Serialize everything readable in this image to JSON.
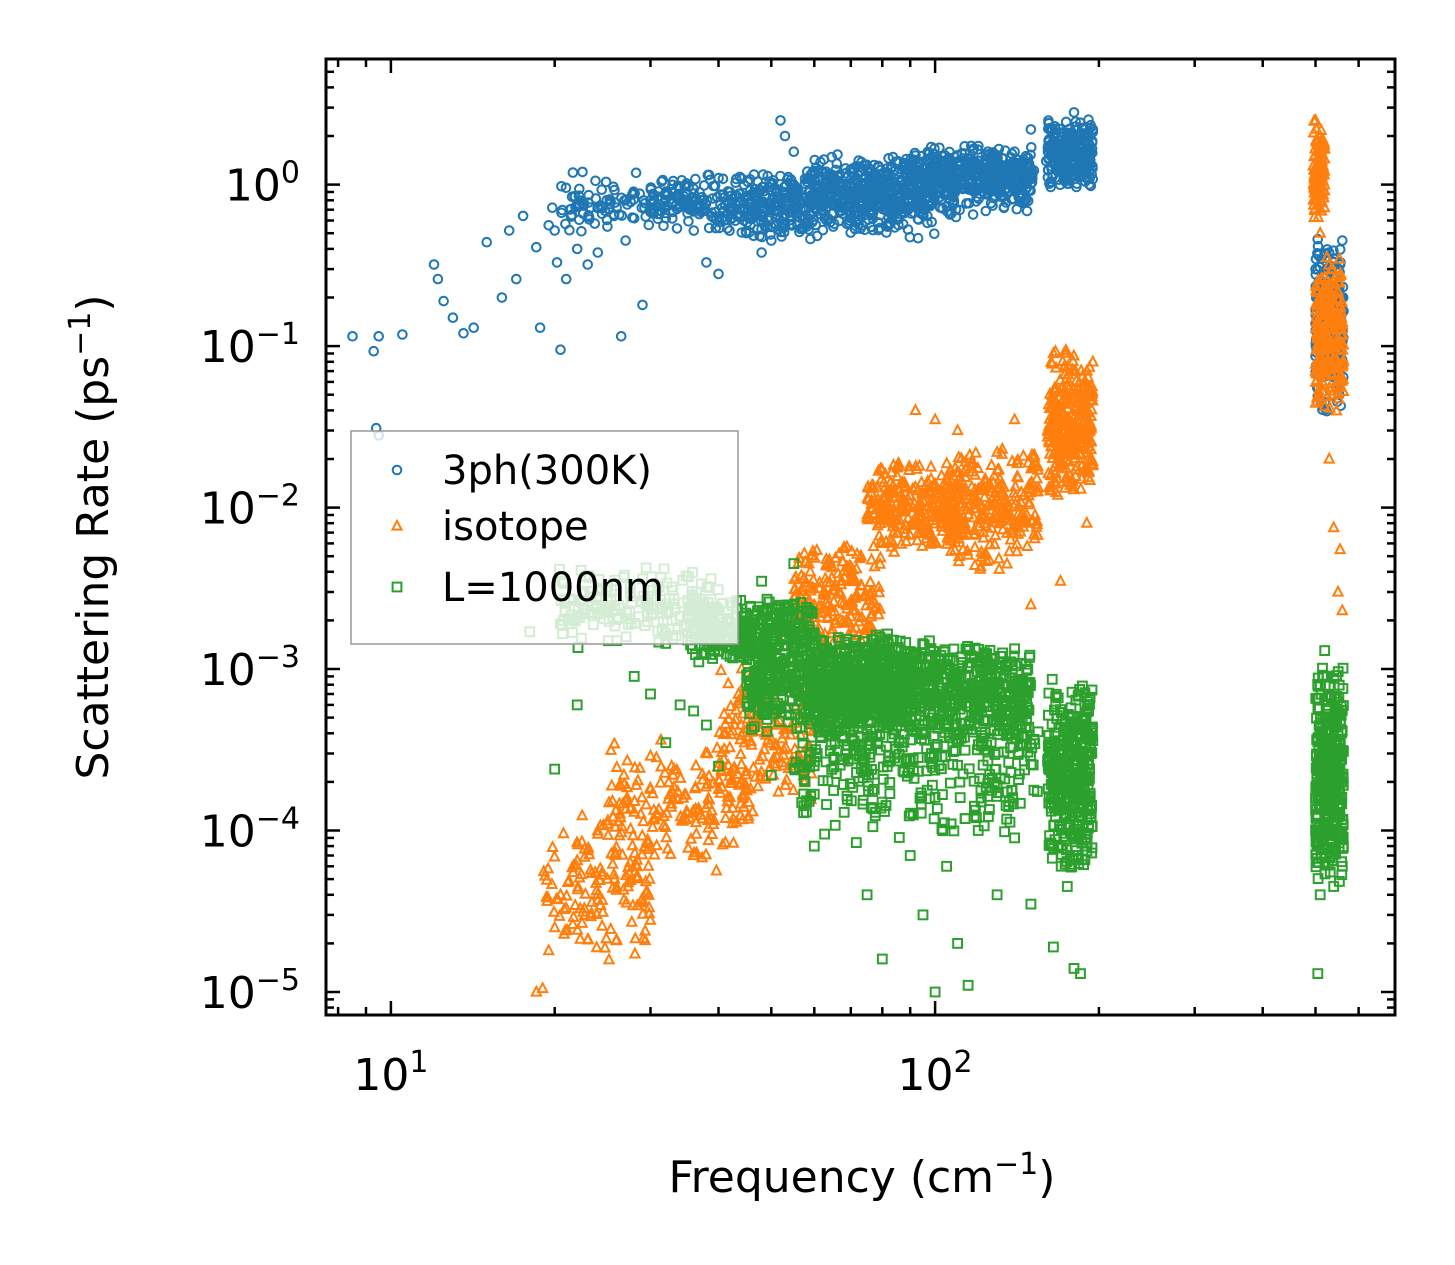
{
  "chart_data": {
    "type": "scatter",
    "title": "",
    "xlabel": "Frequency (cm",
    "xlabel_sup": "−1",
    "xlabel_close": ")",
    "ylabel": "Scattering Rate (ps",
    "ylabel_sup": "−1",
    "ylabel_close": ")",
    "xscale": "log",
    "yscale": "log",
    "xlim": [
      7.6,
      700
    ],
    "ylim": [
      7.2e-06,
      6.0
    ],
    "x_ticks": [
      {
        "value": 10,
        "base": "10",
        "exp": "1"
      },
      {
        "value": 100,
        "base": "10",
        "exp": "2"
      }
    ],
    "y_ticks": [
      {
        "value": 1,
        "base": "10",
        "exp": "0"
      },
      {
        "value": 0.1,
        "base": "10",
        "exp": "−1"
      },
      {
        "value": 0.01,
        "base": "10",
        "exp": "−2"
      },
      {
        "value": 0.001,
        "base": "10",
        "exp": "−3"
      },
      {
        "value": 0.0001,
        "base": "10",
        "exp": "−4"
      },
      {
        "value": 1e-05,
        "base": "10",
        "exp": "−5"
      }
    ],
    "legend_position": "center-left",
    "series": [
      {
        "name": "3ph(300K)",
        "marker": "circle",
        "color": "#1f77b4",
        "points": [
          [
            8.5,
            0.115
          ],
          [
            9.3,
            0.093
          ],
          [
            9.5,
            0.115
          ],
          [
            10.5,
            0.118
          ],
          [
            9.4,
            0.031
          ],
          [
            9.5,
            0.028
          ],
          [
            12,
            0.32
          ],
          [
            12.2,
            0.26
          ],
          [
            12.5,
            0.19
          ],
          [
            13,
            0.15
          ],
          [
            13.6,
            0.12
          ],
          [
            14.2,
            0.13
          ],
          [
            15,
            0.44
          ],
          [
            16,
            0.2
          ],
          [
            16.5,
            0.52
          ],
          [
            17,
            0.26
          ],
          [
            17.5,
            0.64
          ],
          [
            18.5,
            0.41
          ],
          [
            18.8,
            0.13
          ],
          [
            19.5,
            0.56
          ],
          [
            19.8,
            0.72
          ],
          [
            20,
            0.52
          ],
          [
            20.2,
            0.33
          ],
          [
            20.5,
            0.095
          ],
          [
            21,
            0.26
          ],
          [
            21.5,
            0.65
          ],
          [
            22,
            0.4
          ],
          [
            22.5,
            1.2
          ],
          [
            23,
            0.32
          ],
          [
            24,
            0.38
          ],
          [
            25,
            0.55
          ],
          [
            26,
            0.72
          ],
          [
            26.5,
            0.115
          ],
          [
            27,
            0.45
          ],
          [
            28,
            0.62
          ],
          [
            29,
            0.18
          ],
          [
            30,
            0.8
          ],
          [
            32,
            0.62
          ],
          [
            34,
            0.95
          ],
          [
            36,
            0.7
          ],
          [
            38,
            0.33
          ],
          [
            40,
            0.28
          ],
          [
            42,
            0.9
          ],
          [
            45,
            0.5
          ],
          [
            48,
            0.38
          ],
          [
            50,
            0.45
          ],
          [
            52,
            2.5
          ],
          [
            53,
            2.0
          ],
          [
            55,
            1.6
          ],
          [
            60,
            0.75
          ],
          [
            65,
            0.55
          ],
          [
            70,
            0.62
          ],
          [
            80,
            0.9
          ],
          [
            90,
            1.0
          ],
          [
            100,
            1.1
          ],
          [
            110,
            1.2
          ],
          [
            120,
            1.3
          ],
          [
            140,
            1.6
          ],
          [
            150,
            2.2
          ],
          [
            160,
            1.4
          ],
          [
            170,
            2.1
          ],
          [
            180,
            2.8
          ],
          [
            190,
            1.4
          ],
          [
            500,
            0.3
          ],
          [
            520,
            0.12
          ],
          [
            540,
            0.05
          ],
          [
            560,
            0.45
          ]
        ],
        "clusters": [
          {
            "x": [
              20.5,
              46
            ],
            "y": [
              0.5,
              1.2
            ],
            "n": 160
          },
          {
            "x": [
              30,
              60
            ],
            "y": [
              0.45,
              1.2
            ],
            "n": 160
          },
          {
            "x": [
              45,
              100
            ],
            "y": [
              0.45,
              1.3
            ],
            "n": 380
          },
          {
            "x": [
              60,
              150
            ],
            "y": [
              0.6,
              1.6
            ],
            "n": 480
          },
          {
            "x": [
              90,
              152
            ],
            "y": [
              0.85,
              1.8
            ],
            "n": 300
          },
          {
            "x": [
              161,
              195
            ],
            "y": [
              0.9,
              2.7
            ],
            "n": 280
          },
          {
            "x": [
              500,
              563
            ],
            "y": [
              0.035,
              0.5
            ],
            "n": 280
          }
        ]
      },
      {
        "name": "isotope",
        "marker": "triangle",
        "color": "#ff7f0e",
        "points": [
          [
            18.5,
            1e-05
          ],
          [
            19,
            1.05e-05
          ],
          [
            19.5,
            1.8e-05
          ],
          [
            20,
            2.5e-05
          ],
          [
            20.5,
            4e-05
          ],
          [
            21,
            3.3e-05
          ],
          [
            22,
            6.5e-05
          ],
          [
            23,
            2.1e-05
          ],
          [
            24,
            9.5e-05
          ],
          [
            25,
            5e-05
          ],
          [
            26,
            2.1e-05
          ],
          [
            28,
            0.00013
          ],
          [
            30,
            0.00018
          ],
          [
            33,
            0.00022
          ],
          [
            36,
            7e-05
          ],
          [
            40,
            0.00018
          ],
          [
            44,
            0.00045
          ],
          [
            48,
            0.00065
          ],
          [
            52,
            0.0015
          ],
          [
            60,
            0.0025
          ],
          [
            70,
            0.004
          ],
          [
            80,
            0.006
          ],
          [
            92,
            0.04
          ],
          [
            100,
            0.035
          ],
          [
            110,
            0.03
          ],
          [
            120,
            0.013
          ],
          [
            130,
            0.022
          ],
          [
            140,
            0.035
          ],
          [
            150,
            0.0025
          ],
          [
            165,
            0.09
          ],
          [
            170,
            0.0035
          ],
          [
            180,
            0.07
          ],
          [
            190,
            0.008
          ],
          [
            500,
            2.5
          ],
          [
            510,
            0.5
          ],
          [
            520,
            0.1
          ],
          [
            530,
            0.02
          ],
          [
            540,
            0.0075
          ],
          [
            550,
            0.003
          ],
          [
            555,
            0.0055
          ],
          [
            560,
            0.0023
          ]
        ],
        "clusters": [
          {
            "x": [
              19,
              30
            ],
            "y": [
              1.5e-05,
              0.00013
            ],
            "n": 130
          },
          {
            "x": [
              25,
              46
            ],
            "y": [
              5e-05,
              0.0004
            ],
            "n": 180
          },
          {
            "x": [
              40,
              60
            ],
            "y": [
              0.00012,
              0.0012
            ],
            "n": 160
          },
          {
            "x": [
              55,
              80
            ],
            "y": [
              0.0012,
              0.006
            ],
            "n": 200
          },
          {
            "x": [
              75,
              110
            ],
            "y": [
              0.005,
              0.02
            ],
            "n": 260
          },
          {
            "x": [
              105,
              155
            ],
            "y": [
              0.004,
              0.025
            ],
            "n": 260
          },
          {
            "x": [
              161,
              195
            ],
            "y": [
              0.01,
              0.1
            ],
            "n": 300
          },
          {
            "x": [
              495,
              520
            ],
            "y": [
              0.6,
              2.5
            ],
            "n": 110
          },
          {
            "x": [
              500,
              563
            ],
            "y": [
              0.035,
              0.4
            ],
            "n": 220
          }
        ]
      },
      {
        "name": "L=1000nm",
        "marker": "square",
        "color": "#2ca02c",
        "points": [
          [
            18,
            0.0017
          ],
          [
            20,
            0.00024
          ],
          [
            22,
            0.0006
          ],
          [
            24,
            0.0022
          ],
          [
            26,
            0.0015
          ],
          [
            28,
            0.0009
          ],
          [
            30,
            0.0007
          ],
          [
            32,
            0.00035
          ],
          [
            34,
            0.0006
          ],
          [
            36,
            0.00055
          ],
          [
            38,
            0.00045
          ],
          [
            40,
            0.00025
          ],
          [
            42,
            0.0012
          ],
          [
            45,
            0.0018
          ],
          [
            48,
            0.0035
          ],
          [
            50,
            0.00022
          ],
          [
            55,
            0.0045
          ],
          [
            58,
            0.00013
          ],
          [
            60,
            8e-05
          ],
          [
            70,
            0.0012
          ],
          [
            75,
            4e-05
          ],
          [
            80,
            1.6e-05
          ],
          [
            90,
            7e-05
          ],
          [
            95,
            3e-05
          ],
          [
            100,
            1e-05
          ],
          [
            105,
            6e-05
          ],
          [
            110,
            2e-05
          ],
          [
            115,
            1.1e-05
          ],
          [
            120,
            0.0001
          ],
          [
            130,
            4e-05
          ],
          [
            140,
            9e-05
          ],
          [
            150,
            3.5e-05
          ],
          [
            165,
            1.9e-05
          ],
          [
            175,
            4.5e-05
          ],
          [
            180,
            1.4e-05
          ],
          [
            185,
            1.3e-05
          ],
          [
            190,
            8e-05
          ],
          [
            505,
            1.3e-05
          ],
          [
            510,
            4e-05
          ],
          [
            520,
            0.0013
          ],
          [
            540,
            4.5e-05
          ],
          [
            560,
            6e-05
          ]
        ],
        "clusters": [
          {
            "x": [
              20,
              40
            ],
            "y": [
              0.0013,
              0.0045
            ],
            "n": 180
          },
          {
            "x": [
              35,
              60
            ],
            "y": [
              0.001,
              0.003
            ],
            "n": 320
          },
          {
            "x": [
              45,
              90
            ],
            "y": [
              0.0004,
              0.0018
            ],
            "n": 620
          },
          {
            "x": [
              60,
              150
            ],
            "y": [
              0.0003,
              0.0016
            ],
            "n": 800
          },
          {
            "x": [
              55,
              155
            ],
            "y": [
              8e-05,
              0.0008
            ],
            "n": 300
          },
          {
            "x": [
              161,
              195
            ],
            "y": [
              5e-05,
              0.0009
            ],
            "n": 400
          },
          {
            "x": [
              500,
              563
            ],
            "y": [
              4e-05,
              0.0012
            ],
            "n": 380
          }
        ]
      }
    ]
  }
}
